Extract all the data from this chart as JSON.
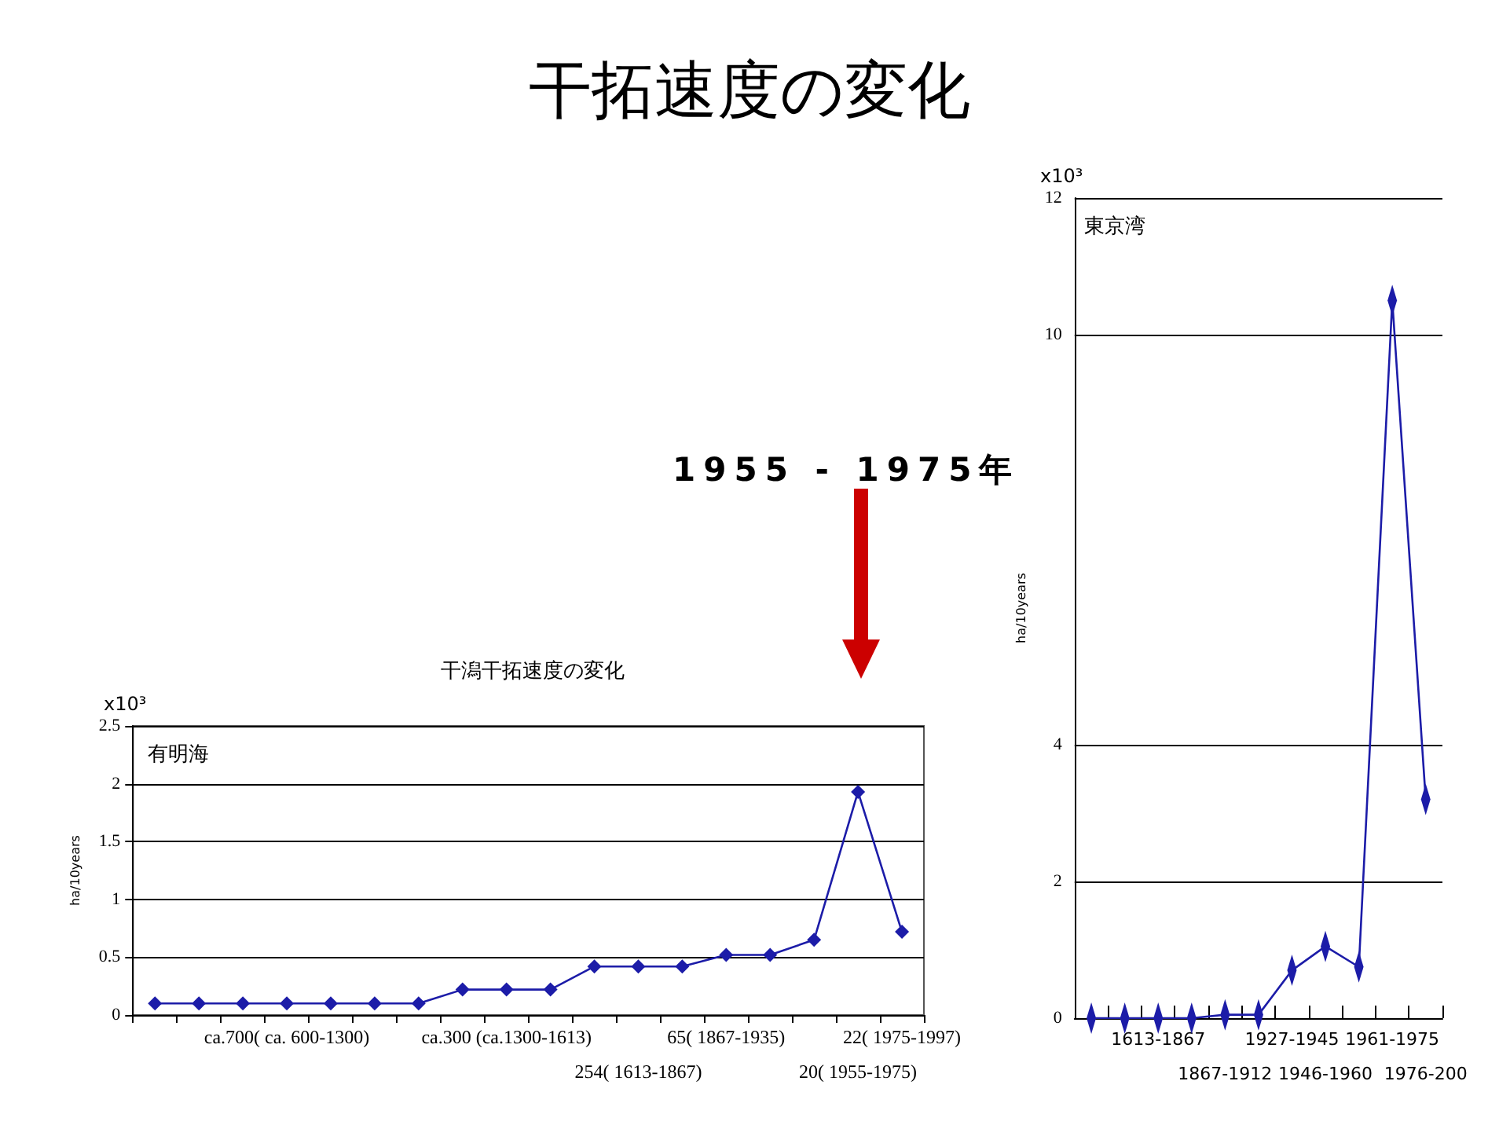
{
  "chart_data": [
    {
      "type": "line",
      "title": "干潟干拓速度の変化",
      "ylabel": "ha/10years",
      "annotations": [
        "干拓速度の変化",
        "1955 - 1975年",
        "x10³",
        "有明海"
      ],
      "categories": [
        null,
        null,
        null,
        "ca.700( ca. 600-1300)",
        null,
        null,
        null,
        null,
        "ca.300 (ca.1300-1613)",
        null,
        null,
        "254( 1613-1867)",
        null,
        "65( 1867-1935)",
        null,
        null,
        "20( 1955-1975)",
        "22( 1975-1997)"
      ],
      "series": [
        {
          "color": "#1c1ca8",
          "values": [
            0.1,
            0.1,
            0.1,
            0.1,
            0.1,
            0.1,
            0.1,
            0.22,
            0.22,
            0.22,
            0.42,
            0.42,
            0.42,
            0.52,
            0.52,
            0.65,
            1.93,
            0.72
          ]
        }
      ],
      "ylim": [
        0,
        2.5
      ],
      "yticks": [
        0,
        0.5,
        1,
        1.5,
        2,
        2.5
      ],
      "grid": "y",
      "marker": "diamond",
      "line_style": "solid"
    },
    {
      "type": "line",
      "ylabel": "ha/10years",
      "annotations": [
        "x10³",
        "東京湾"
      ],
      "categories": [
        null,
        null,
        "1613-1867",
        null,
        "1867-1912",
        null,
        "1927-1945",
        "1946-1960",
        null,
        "1961-1975",
        "1976-200"
      ],
      "series": [
        {
          "color": "#1c1ca8",
          "values": [
            0,
            0,
            0,
            0,
            0.05,
            0.05,
            0.7,
            1.05,
            0.75,
            10.5,
            3.2
          ]
        }
      ],
      "ylim": [
        0,
        12
      ],
      "yticks": [
        0,
        2,
        4,
        10,
        12
      ],
      "grid": "y",
      "marker": "diamond",
      "line_style": "solid"
    }
  ]
}
